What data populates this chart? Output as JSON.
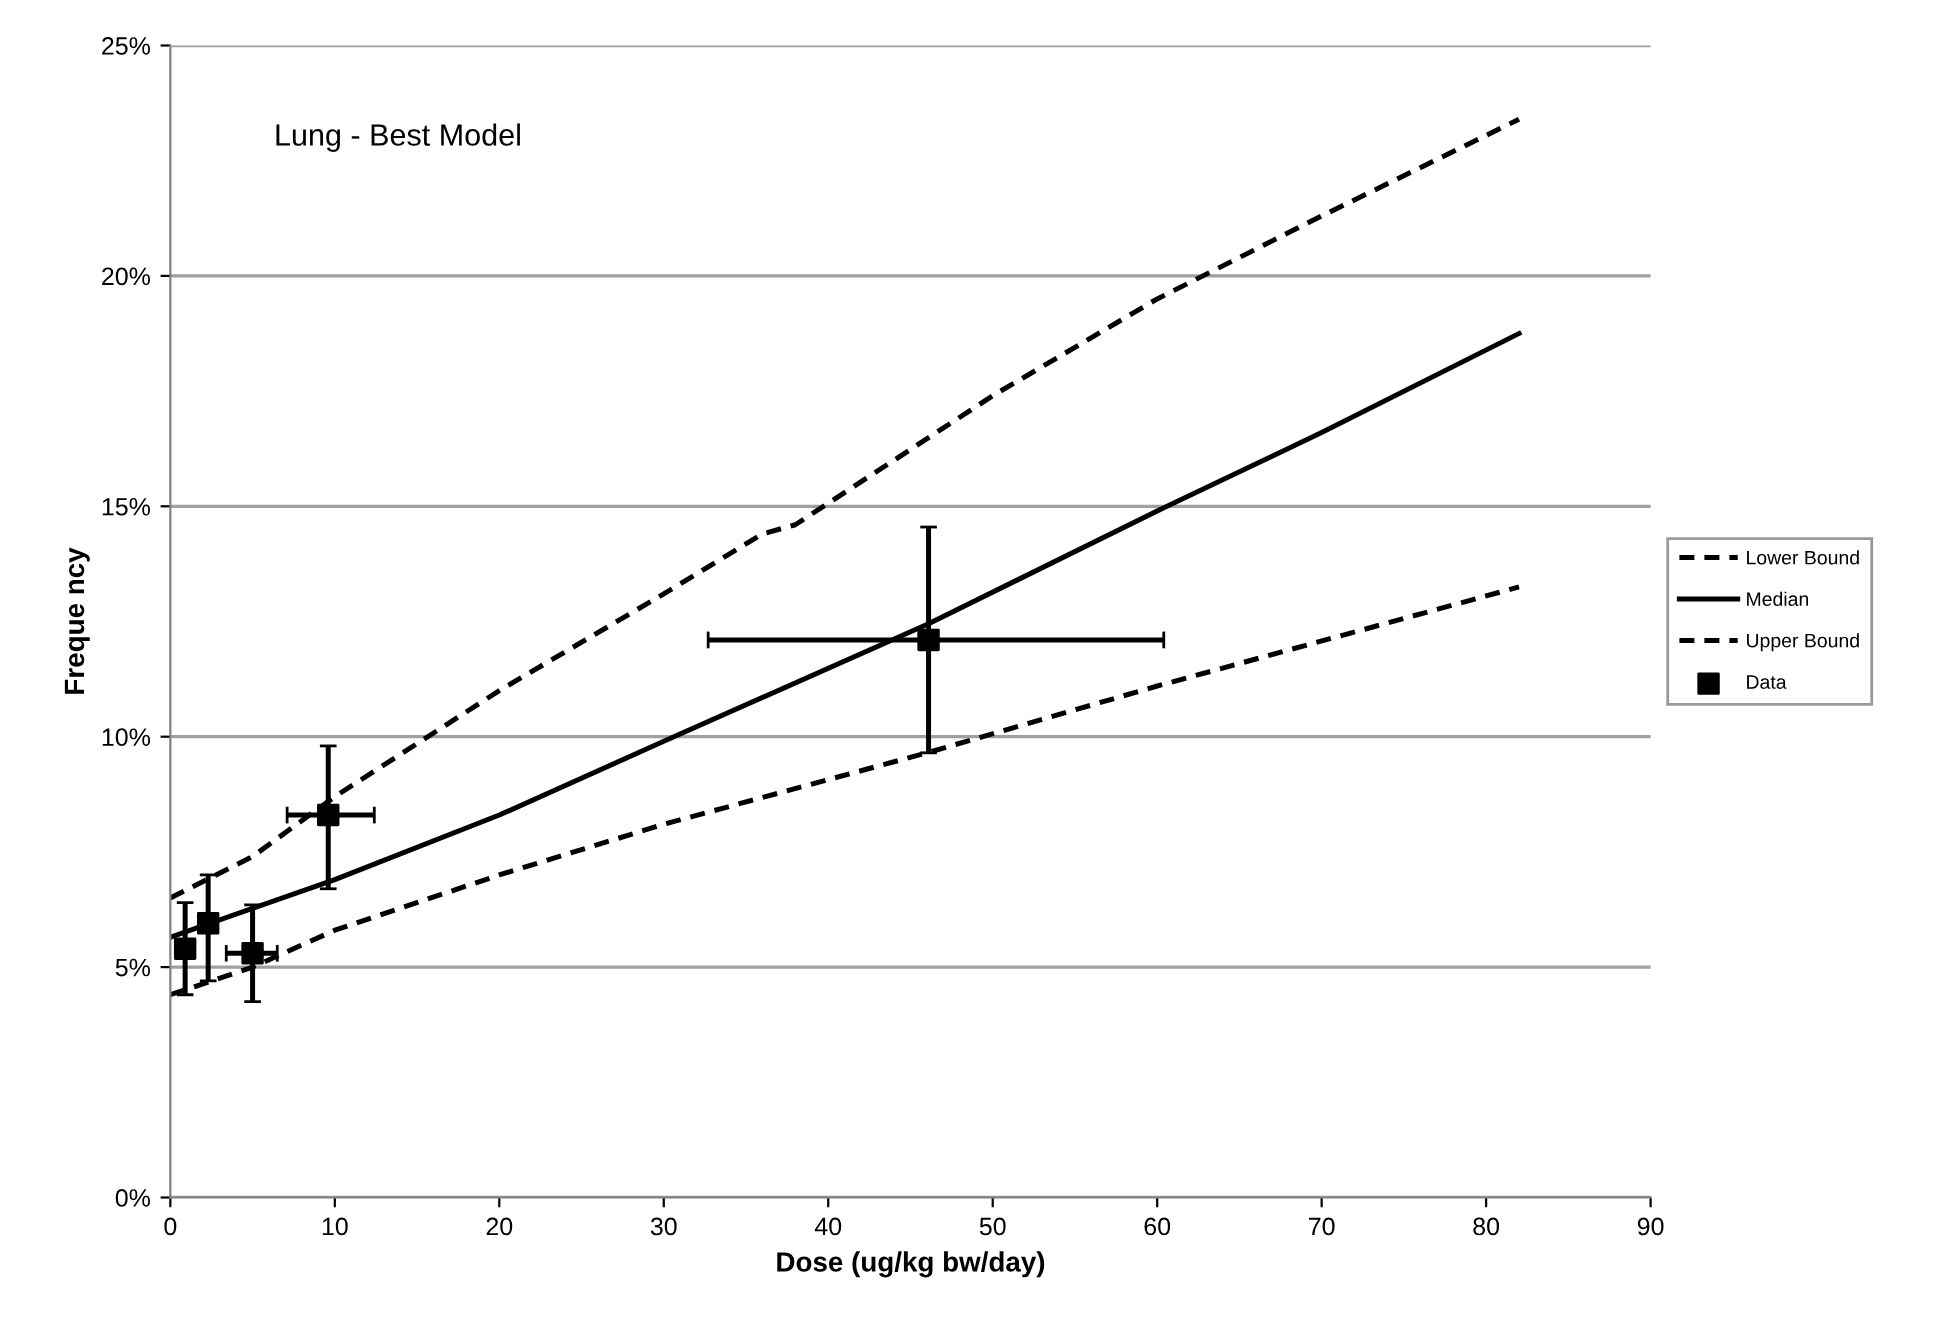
{
  "chart_data": {
    "type": "line",
    "xlabel": "Dose (ug/kg bw/day)",
    "ylabel": "Freque ncy",
    "annotations": [
      "Lung - Best Model"
    ],
    "xlim": [
      0,
      90
    ],
    "xticks": [
      0,
      10,
      20,
      30,
      40,
      50,
      60,
      70,
      80,
      90
    ],
    "ylim": [
      0,
      25
    ],
    "yticks": [
      {
        "value": 0,
        "label": "0%"
      },
      {
        "value": 5,
        "label": "5%"
      },
      {
        "value": 10,
        "label": "10%"
      },
      {
        "value": 15,
        "label": "15%"
      },
      {
        "value": 20,
        "label": "20%"
      },
      {
        "value": 25,
        "label": "25%"
      }
    ],
    "grid": "y",
    "legend": "right",
    "series": [
      {
        "name": "Lower Bound",
        "color": "#000000",
        "line_style": "dashed",
        "x": [
          0,
          5,
          10,
          20,
          30,
          46,
          60,
          82
        ],
        "values": [
          4.4,
          5.0,
          5.8,
          7.0,
          8.1,
          9.65,
          11.1,
          13.25
        ]
      },
      {
        "name": "Median",
        "color": "#000000",
        "line_style": "solid",
        "x": [
          0,
          10,
          20,
          30,
          46.1,
          60,
          70,
          82
        ],
        "values": [
          5.65,
          6.9,
          8.3,
          9.9,
          12.45,
          14.9,
          16.6,
          18.75
        ]
      },
      {
        "name": "Upper Bound",
        "color": "#000000",
        "line_style": "dashed",
        "x": [
          0,
          5,
          10,
          20,
          30,
          36,
          38,
          50,
          60,
          70,
          82
        ],
        "values": [
          6.5,
          7.4,
          8.7,
          11.0,
          13.1,
          14.4,
          14.6,
          17.4,
          19.5,
          21.3,
          23.4
        ]
      },
      {
        "name": "Data",
        "type": "scatter",
        "color": "#000000",
        "marker": "square",
        "x": [
          0.9,
          2.3,
          5.0,
          9.6,
          46.1
        ],
        "values": [
          5.4,
          5.95,
          5.3,
          8.3,
          12.1
        ],
        "errors": [
          [
            4.4,
            6.4
          ],
          [
            4.7,
            7.0
          ],
          [
            4.25,
            6.35
          ],
          [
            6.7,
            9.8
          ],
          [
            9.65,
            14.55
          ]
        ],
        "xerrors": [
          null,
          null,
          [
            3.4,
            6.5
          ],
          [
            7.1,
            12.4
          ],
          [
            32.7,
            60.4
          ]
        ]
      }
    ]
  }
}
